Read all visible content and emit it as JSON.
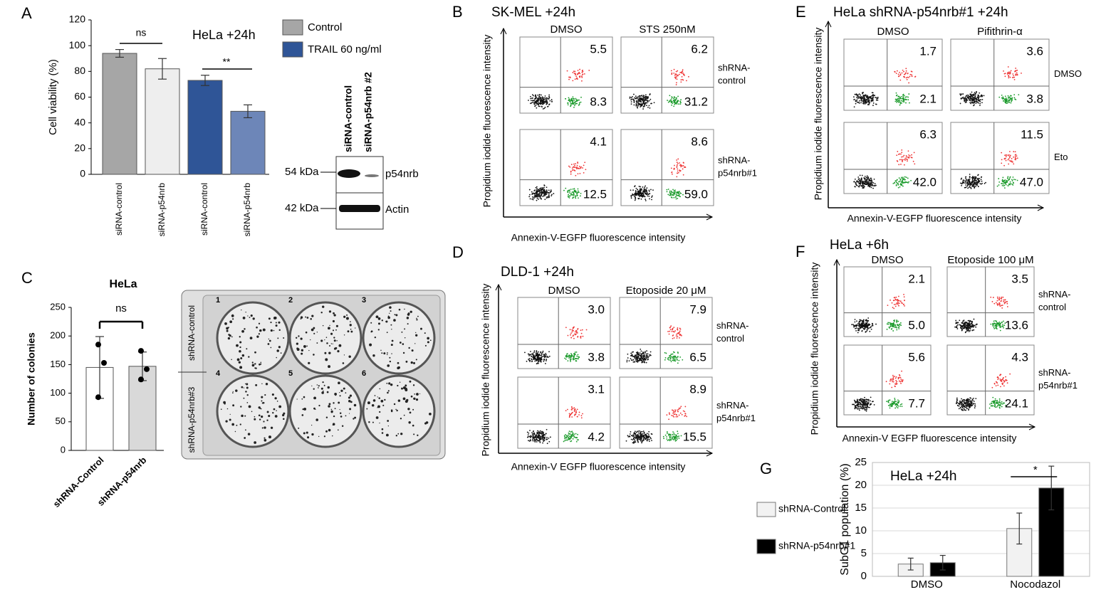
{
  "chart_data": [
    {
      "type": "bar",
      "panel": "A",
      "annotation": "HeLa +24h",
      "ylabel": "Cell viability (%)",
      "categories": [
        "siRNA-control",
        "siRNA-p54nrb",
        "siRNA-control",
        "siRNA-p54nrb"
      ],
      "values": [
        94,
        82,
        73,
        49
      ],
      "errors": [
        3,
        8,
        4,
        5
      ],
      "colors": [
        "#a6a6a6",
        "#eeeeee",
        "#2f5597",
        "#6d86b8"
      ],
      "legend": [
        {
          "name": "Control",
          "color": "#a6a6a6"
        },
        {
          "name": "TRAIL 60 ng/ml",
          "color": "#2f5597"
        }
      ],
      "significance": [
        "ns",
        "**"
      ],
      "ylim": [
        0,
        120
      ],
      "yticks": [
        0,
        20,
        40,
        60,
        80,
        100,
        120
      ]
    },
    {
      "type": "bar",
      "panel": "C",
      "title": "HeLa",
      "ylabel": "Number of colonies",
      "categories": [
        "shRNA-Control",
        "shRNA-p54nrb"
      ],
      "values": [
        145,
        147
      ],
      "errors": [
        54,
        25
      ],
      "points": [
        [
          185,
          153,
          93
        ],
        [
          174,
          142,
          124
        ]
      ],
      "colors": [
        "#ffffff",
        "#d9d9d9"
      ],
      "significance": [
        "ns"
      ],
      "ylim": [
        0,
        250
      ],
      "yticks": [
        0,
        50,
        100,
        150,
        200,
        250
      ]
    },
    {
      "type": "grouped-bar",
      "panel": "G",
      "annotation": "HeLa +24h",
      "ylabel": "SubG1 population (%)",
      "categories": [
        "DMSO",
        "Nocodazol"
      ],
      "series": [
        {
          "name": "shRNA-Control",
          "color": "#f2f2f2",
          "values": [
            2.7,
            10.5
          ],
          "errors": [
            1.3,
            3.4
          ]
        },
        {
          "name": "shRNA-p54nrb#1",
          "color": "#000000",
          "values": [
            3,
            19.4
          ],
          "errors": [
            1.6,
            4.8
          ]
        }
      ],
      "significance": [
        "*"
      ],
      "ylim": [
        0,
        25
      ],
      "yticks": [
        0,
        5,
        10,
        15,
        20,
        25
      ],
      "grid": true
    }
  ],
  "blot": {
    "lanes": [
      "siRNA-control",
      "siRNA-p54nrb #2"
    ],
    "markers": [
      "54 kDa",
      "42 kDa"
    ],
    "proteins": [
      "p54nrb",
      "Actin"
    ]
  },
  "plate": {
    "rows": [
      "shRNA-control",
      "shRNA-p54nrb#3"
    ],
    "wells": [
      "1",
      "2",
      "3",
      "4",
      "5",
      "6"
    ]
  },
  "flow_panels": [
    {
      "panel": "B",
      "title": "SK-MEL +24h",
      "xlabel": "Annexin-V-EGFP fluorescence intensity",
      "ylabel": "Propidium iodide fluorescence intensity",
      "columns": [
        "DMSO",
        "STS 250nM"
      ],
      "rows": [
        {
          "label": [
            "shRNA-",
            "control"
          ],
          "cells": [
            {
              "q2": "5.5",
              "q4": "8.3"
            },
            {
              "q2": "6.2",
              "q4": "31.2"
            }
          ]
        },
        {
          "label": [
            "shRNA-",
            "p54nrb#1"
          ],
          "cells": [
            {
              "q2": "4.1",
              "q4": "12.5"
            },
            {
              "q2": "8.6",
              "q4": "59.0"
            }
          ]
        }
      ]
    },
    {
      "panel": "D",
      "title": "DLD-1 +24h",
      "xlabel": "Annexin-V EGFP fluorescence intensity",
      "ylabel": "Propidium iodide fluorescence intensity",
      "columns": [
        "DMSO",
        "Etoposide 20 μM"
      ],
      "rows": [
        {
          "label": [
            "shRNA-",
            "control"
          ],
          "cells": [
            {
              "q2": "3.0",
              "q4": "3.8"
            },
            {
              "q2": "7.9",
              "q4": "6.5"
            }
          ]
        },
        {
          "label": [
            "shRNA-",
            "p54nrb#1"
          ],
          "cells": [
            {
              "q2": "3.1",
              "q4": "4.2"
            },
            {
              "q2": "8.9",
              "q4": "15.5"
            }
          ]
        }
      ]
    },
    {
      "panel": "E",
      "title": "HeLa  shRNA-p54nrb#1   +24h",
      "xlabel": "Annexin-V-EGFP fluorescence intensity",
      "ylabel": "Propidium iodide fluorescence intensity",
      "columns": [
        "DMSO",
        "Pifithrin-α"
      ],
      "rows": [
        {
          "label": [
            "DMSO"
          ],
          "cells": [
            {
              "q2": "1.7",
              "q4": "2.1"
            },
            {
              "q2": "3.6",
              "q4": "3.8"
            }
          ]
        },
        {
          "label": [
            "Eto"
          ],
          "cells": [
            {
              "q2": "6.3",
              "q4": "42.0"
            },
            {
              "q2": "11.5",
              "q4": "47.0"
            }
          ]
        }
      ]
    },
    {
      "panel": "F",
      "title": "HeLa +6h",
      "xlabel": "Annexin-V EGFP fluorescence intensity",
      "ylabel": "Propidium iodide fluorescence intensity",
      "columns": [
        "DMSO",
        "Etoposide 100 μM"
      ],
      "rows": [
        {
          "label": [
            "shRNA-",
            "control"
          ],
          "cells": [
            {
              "q2": "2.1",
              "q4": "5.0"
            },
            {
              "q2": "3.5",
              "q4": "13.6"
            }
          ]
        },
        {
          "label": [
            "shRNA-",
            "p54nrb#1"
          ],
          "cells": [
            {
              "q2": "5.6",
              "q4": "7.7"
            },
            {
              "q2": "4.3",
              "q4": "24.1"
            }
          ]
        }
      ]
    }
  ]
}
